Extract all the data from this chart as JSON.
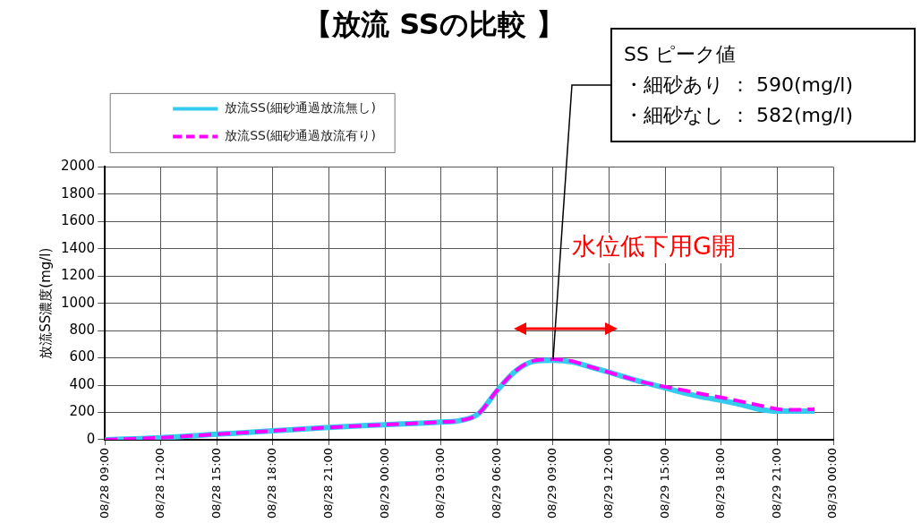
{
  "chart_data": {
    "type": "line",
    "title": "【放流 SSの比較 】",
    "ylabel": "放流SS濃度(mg/l)",
    "x": [
      "--08-28T09:00",
      "--08-28T12:00",
      "--08-28T15:00",
      "--08-28T18:00",
      "--08-28T21:00",
      "--08-29T00:00",
      "--08-29T03:00",
      "--08-29T04:00",
      "--08-29T05:00",
      "--08-29T06:00",
      "--08-29T07:00",
      "--08-29T08:00",
      "--08-29T09:00",
      "--08-29T10:00",
      "--08-29T11:00",
      "--08-29T12:00",
      "--08-29T13:00",
      "--08-29T14:00",
      "--08-29T15:00",
      "--08-29T16:00",
      "--08-29T17:00",
      "--08-29T18:00",
      "--08-29T19:00",
      "--08-29T20:00",
      "--08-29T21:00",
      "--08-29T22:00",
      "--08-29T23:00"
    ],
    "series": [
      {
        "name": "放流SS(細砂通過放流無し)",
        "color": "#33ccee",
        "line_style": "solid",
        "values": [
          0,
          15,
          40,
          65,
          90,
          110,
          130,
          140,
          190,
          360,
          505,
          575,
          582,
          570,
          533,
          494,
          453,
          414,
          380,
          344,
          312,
          289,
          260,
          225,
          210,
          210,
          210
        ]
      },
      {
        "name": "放流SS(細砂通過放流有り)",
        "color": "#ff00ff",
        "line_style": "dashed",
        "values": [
          0,
          15,
          40,
          65,
          90,
          110,
          130,
          140,
          190,
          362,
          505,
          580,
          590,
          576,
          535,
          494,
          453,
          416,
          388,
          362,
          335,
          310,
          282,
          253,
          225,
          219,
          225
        ]
      }
    ],
    "xlim": [
      "--08-28T09:00",
      "--08-30T00:00"
    ],
    "xticks": [
      {
        "value": "--08-28T09:00",
        "label": "08/28 09:00"
      },
      {
        "value": "--08-28T12:00",
        "label": "08/28 12:00"
      },
      {
        "value": "--08-28T15:00",
        "label": "08/28 15:00"
      },
      {
        "value": "--08-28T18:00",
        "label": "08/28 18:00"
      },
      {
        "value": "--08-28T21:00",
        "label": "08/28 21:00"
      },
      {
        "value": "--08-29T00:00",
        "label": "08/29 00:00"
      },
      {
        "value": "--08-29T03:00",
        "label": "08/29 03:00"
      },
      {
        "value": "--08-29T06:00",
        "label": "08/29 06:00"
      },
      {
        "value": "--08-29T09:00",
        "label": "08/29 09:00"
      },
      {
        "value": "--08-29T12:00",
        "label": "08/29 12:00"
      },
      {
        "value": "--08-29T15:00",
        "label": "08/29 15:00"
      },
      {
        "value": "--08-29T18:00",
        "label": "08/29 18:00"
      },
      {
        "value": "--08-29T21:00",
        "label": "08/29 21:00"
      },
      {
        "value": "--08-30T00:00",
        "label": "08/30 00:00"
      }
    ],
    "ylim": [
      0,
      2000
    ],
    "yticks": [
      0,
      200,
      400,
      600,
      800,
      1000,
      1200,
      1400,
      1600,
      1800,
      2000
    ],
    "grid": true,
    "legend": "top left",
    "marker": "none",
    "annotations": [
      {
        "text": "SS ピーク値",
        "x": "--08-29T09:00",
        "y": 590
      },
      "・細砂あり ： 590(mg/l)",
      "・細砂なし ： 582(mg/l)",
      "水位低下用G開"
    ]
  }
}
